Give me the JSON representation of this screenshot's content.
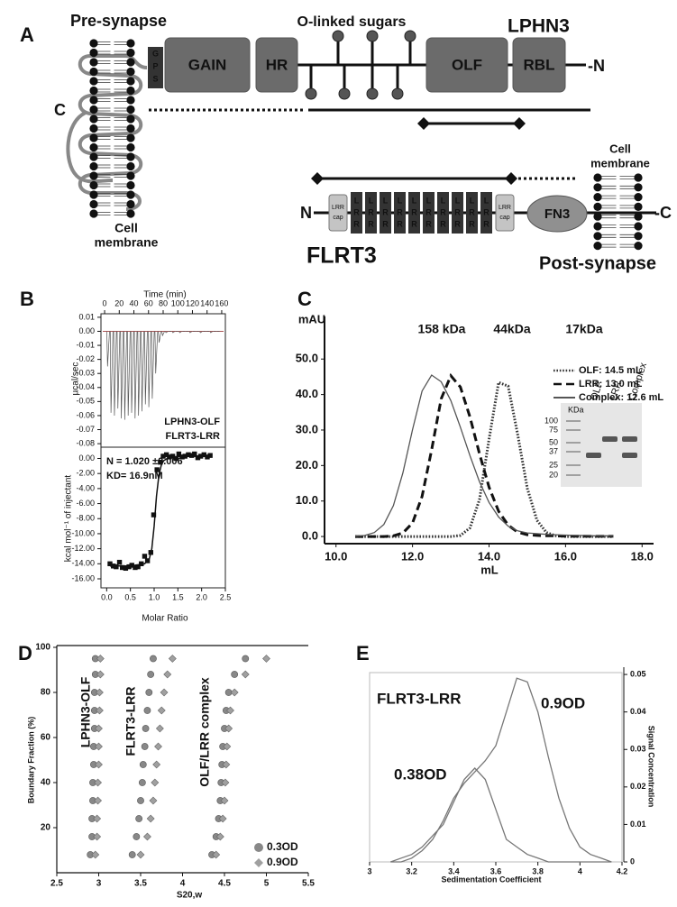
{
  "diagram": {
    "panel": "A",
    "pre_synapse": "Pre-synapse",
    "sugars": "O-linked sugars",
    "lphn3": "LPHN3",
    "gps": [
      "G",
      "P",
      "S"
    ],
    "domains_lphn3": [
      "GAIN",
      "HR",
      "OLF",
      "RBL"
    ],
    "n_term": "-N",
    "c_term": "C",
    "cell_membrane_left": [
      "Cell",
      "membrane"
    ],
    "cell_membrane_right": [
      "Cell",
      "membrane"
    ],
    "flrt3_n": "N",
    "lrr_cap": [
      "LRR",
      "cap"
    ],
    "lrr_block": [
      "L",
      "R",
      "R"
    ],
    "fn3": "FN3",
    "flrt3_c": "-C",
    "flrt3": "FLRT3",
    "post_synapse": "Post-synapse"
  },
  "panels": [
    "B",
    "C",
    "D",
    "E"
  ],
  "chart_data": [
    {
      "type": "spike",
      "xlabel": "Time (min)",
      "ylabel": "µcal/sec",
      "annotations": [
        "LPHN3-OLF",
        "FLRT3-LRR"
      ],
      "color": "#555555",
      "x": [
        3,
        7.7,
        12.4,
        17.1,
        21.8,
        26.5,
        31.2,
        35.9,
        40.6,
        45.3,
        50,
        54.7,
        59.4,
        64.1,
        68.8,
        73.5,
        78.2,
        82.9,
        87.6,
        92.3,
        97,
        101.7,
        106.4,
        111.1,
        115.8,
        120.5,
        125.2,
        129.9,
        134.6,
        139.3,
        144,
        148.7,
        153.4
      ],
      "values": [
        -0.025,
        -0.058,
        -0.06,
        -0.055,
        -0.062,
        -0.063,
        -0.06,
        -0.058,
        -0.062,
        -0.06,
        -0.057,
        -0.052,
        -0.054,
        -0.048,
        -0.03,
        -0.008,
        -0.003,
        -0.001,
        0,
        -0.001,
        0,
        -0.001,
        0,
        0,
        -0.001,
        0,
        0,
        -0.001,
        0,
        0,
        -0.001,
        0,
        0
      ],
      "xlim": [
        -5,
        165
      ],
      "ylim": [
        -0.0825,
        0.0125
      ],
      "xticks": [
        0,
        20,
        40,
        60,
        80,
        100,
        120,
        140,
        160
      ],
      "yticks": [
        0.01,
        {
          "value": 0,
          "label": "0.00"
        },
        -0.01,
        -0.02,
        -0.03,
        -0.04,
        -0.05,
        -0.06,
        -0.07,
        -0.08
      ]
    },
    {
      "type": "scatter",
      "xlabel": "Molar Ratio",
      "ylabel": "kcal mol⁻¹ of injectant",
      "annotations": [
        "N = 1.020 ±0.006",
        "KD= 16.9nM"
      ],
      "series": [
        {
          "marker": "square",
          "color": "#111111",
          "x": [
            0.07,
            0.14,
            0.2,
            0.27,
            0.33,
            0.4,
            0.47,
            0.53,
            0.6,
            0.66,
            0.73,
            0.8,
            0.86,
            0.93,
            0.99,
            1.06,
            1.13,
            1.19,
            1.26,
            1.32,
            1.39,
            1.46,
            1.52,
            1.59,
            1.65,
            1.72,
            1.79,
            1.85,
            1.92,
            1.98,
            2.05,
            2.12,
            2.18
          ],
          "values": [
            -14.0,
            -14.3,
            -14.4,
            -13.8,
            -14.5,
            -14.6,
            -14.4,
            -14.2,
            -14.5,
            -14.4,
            -14.0,
            -13.0,
            -13.6,
            -12.5,
            -7.5,
            -1.5,
            -0.5,
            0.3,
            0.5,
            0.2,
            0.3,
            0.0,
            0.6,
            0.2,
            0.3,
            0.5,
            0.4,
            0.6,
            0.1,
            0.3,
            0.5,
            0.2,
            0.4
          ]
        },
        {
          "marker": "none",
          "color": "#111111",
          "x": [
            0.07,
            0.5,
            0.8,
            0.9,
            0.95,
            1.0,
            1.05,
            1.1,
            1.15,
            1.2,
            1.3,
            1.5,
            2.2
          ],
          "values": [
            -14.3,
            -14.3,
            -14.0,
            -13.3,
            -12.0,
            -9.0,
            -5.0,
            -2.2,
            -0.9,
            -0.3,
            0.1,
            0.25,
            0.3
          ]
        }
      ],
      "xlim": [
        -0.12,
        2.5
      ],
      "ylim": [
        -17.2,
        1.5
      ],
      "xticks": [
        {
          "value": 0,
          "label": "0.0"
        },
        0.5,
        {
          "value": 1,
          "label": "1.0"
        },
        1.5,
        {
          "value": 2,
          "label": "2.0"
        },
        2.5
      ],
      "yticks": [
        {
          "value": 0,
          "label": "0.00"
        },
        {
          "value": -2,
          "label": "-2.00"
        },
        {
          "value": -4,
          "label": "-4.00"
        },
        {
          "value": -6,
          "label": "-6.00"
        },
        {
          "value": -8,
          "label": "-8.00"
        },
        {
          "value": -10,
          "label": "-10.00"
        },
        {
          "value": -12,
          "label": "-12.00"
        },
        {
          "value": -14,
          "label": "-14.00"
        },
        {
          "value": -16,
          "label": "-16.00"
        }
      ]
    },
    {
      "type": "line",
      "ylabel": "mAU",
      "xlabel": "mL",
      "markers": [
        "158 kDa",
        "44kDa",
        "17kDa"
      ],
      "legend": "upper right",
      "x": [
        10.5,
        10.75,
        11,
        11.25,
        11.5,
        11.75,
        12,
        12.25,
        12.5,
        12.75,
        13,
        13.25,
        13.5,
        13.75,
        14,
        14.25,
        14.5,
        14.75,
        15,
        15.25,
        15.5,
        15.75,
        16,
        16.25,
        16.5,
        16.75,
        17,
        17.25
      ],
      "series": [
        {
          "name": "OLF: 14.5 mL",
          "dash": "dotted",
          "color": "#333333",
          "values": [
            0,
            0,
            0,
            0,
            0,
            0,
            0,
            0,
            0,
            0,
            0,
            0.3,
            2.4,
            10.4,
            27.4,
            43.4,
            42.4,
            28.7,
            13.6,
            4.6,
            1.1,
            0.2,
            0,
            0,
            0,
            0,
            0,
            0
          ]
        },
        {
          "name": "LRR: 13.0 mL",
          "dash": "dashed",
          "color": "#111111",
          "values": [
            0,
            0,
            0,
            0,
            0.2,
            1.0,
            3.8,
            11.3,
            24.4,
            38.8,
            45.3,
            42.1,
            33.7,
            23.3,
            13.9,
            7.1,
            3.2,
            1.2,
            0.5,
            0.3,
            0.2,
            0.2,
            0.1,
            0.1,
            0.1,
            0.1,
            0.1,
            0.1
          ]
        },
        {
          "name": "Complex: 12.6 mL",
          "dash": "solid",
          "color": "#555555",
          "values": [
            0.1,
            0.3,
            1.1,
            3.4,
            8.7,
            18.0,
            30.1,
            41.0,
            45.5,
            43.6,
            38.3,
            30.8,
            22.8,
            15.4,
            9.6,
            5.5,
            2.9,
            1.6,
            1.0,
            0.8,
            0.6,
            0.5,
            0.4,
            0.3,
            0.3,
            0.2,
            0.2,
            0.2
          ]
        }
      ],
      "xlim": [
        9.7,
        18.3
      ],
      "ylim": [
        -1,
        62
      ],
      "xticks": [
        {
          "value": 10,
          "label": "10.0"
        },
        {
          "value": 12,
          "label": "12.0"
        },
        {
          "value": 14,
          "label": "14.0"
        },
        {
          "value": 16,
          "label": "16.0"
        },
        {
          "value": 18,
          "label": "18.0"
        }
      ],
      "yticks": [
        {
          "value": 0,
          "label": "0.0"
        },
        {
          "value": 10,
          "label": "10.0"
        },
        {
          "value": 20,
          "label": "20.0"
        },
        {
          "value": 30,
          "label": "30.0"
        },
        {
          "value": 40,
          "label": "40.0"
        },
        {
          "value": 50,
          "label": "50.0"
        }
      ],
      "gel": {
        "unit": "KDa",
        "ladder": [
          100,
          75,
          50,
          37,
          25,
          20
        ],
        "lanes": [
          "OLF",
          "LRR",
          "Complex"
        ]
      }
    },
    {
      "type": "scatter",
      "xlabel": "S20,w",
      "ylabel": "Boundary Fraction (%)",
      "annotations": [
        "LPHN3-OLF",
        "FLRT3-LRR",
        "OLF/LRR complex"
      ],
      "legend": "lower right",
      "series": [
        {
          "name": "0.3OD",
          "marker": "circle",
          "color": "#888888",
          "x": [
            2.9,
            2.92,
            2.92,
            2.93,
            2.93,
            2.94,
            2.94,
            2.95,
            2.95,
            2.95,
            2.96,
            2.96,
            3.4,
            3.45,
            3.48,
            3.5,
            3.52,
            3.53,
            3.55,
            3.56,
            3.58,
            3.6,
            3.62,
            3.65,
            4.35,
            4.4,
            4.43,
            4.45,
            4.46,
            4.47,
            4.48,
            4.5,
            4.52,
            4.55,
            4.62,
            4.75
          ],
          "values": [
            8,
            16,
            24,
            32,
            40,
            48,
            56,
            64,
            72,
            80,
            88,
            95,
            8,
            16,
            24,
            32,
            40,
            48,
            56,
            64,
            72,
            80,
            88,
            95,
            8,
            16,
            24,
            32,
            40,
            48,
            56,
            64,
            72,
            80,
            88,
            95
          ]
        },
        {
          "name": "0.9OD",
          "marker": "diamond",
          "color": "#a0a0a0",
          "x": [
            2.96,
            2.98,
            2.98,
            2.99,
            2.99,
            3.0,
            3.0,
            3.0,
            3.01,
            3.01,
            3.02,
            3.02,
            3.5,
            3.58,
            3.62,
            3.65,
            3.67,
            3.69,
            3.71,
            3.73,
            3.75,
            3.78,
            3.82,
            3.88,
            4.4,
            4.45,
            4.48,
            4.5,
            4.51,
            4.52,
            4.53,
            4.55,
            4.57,
            4.62,
            4.75,
            5.0
          ],
          "values": [
            8,
            16,
            24,
            32,
            40,
            48,
            56,
            64,
            72,
            80,
            88,
            95,
            8,
            16,
            24,
            32,
            40,
            48,
            56,
            64,
            72,
            80,
            88,
            95,
            8,
            16,
            24,
            32,
            40,
            48,
            56,
            64,
            72,
            80,
            88,
            95
          ]
        }
      ],
      "xlim": [
        2.5,
        5.5
      ],
      "ylim": [
        0,
        100
      ],
      "xticks": [
        2.5,
        3,
        3.5,
        4,
        4.5,
        5,
        5.5
      ],
      "yticks": [
        20,
        40,
        60,
        80,
        100
      ]
    },
    {
      "type": "line",
      "title": "FLRT3-LRR",
      "xlabel": "Sedimentation Coefficient",
      "ylabel": "Signal Concentration",
      "x": [
        3.1,
        3.15,
        3.2,
        3.25,
        3.3,
        3.35,
        3.4,
        3.45,
        3.5,
        3.55,
        3.6,
        3.65,
        3.7,
        3.75,
        3.8,
        3.85,
        3.9,
        3.95,
        4.0,
        4.05,
        4.1,
        4.15
      ],
      "series": [
        {
          "name": "0.9OD",
          "axis": "y2",
          "dash": "solid",
          "color": "#777777",
          "values": [
            0,
            0,
            0.001,
            0.003,
            0.006,
            0.011,
            0.017,
            0.021,
            0.024,
            0.027,
            0.031,
            0.04,
            0.049,
            0.048,
            0.04,
            0.028,
            0.017,
            0.009,
            0.004,
            0.002,
            0.001,
            0
          ]
        },
        {
          "name": "0.38OD",
          "axis": "y2",
          "dash": "solid",
          "color": "#777777",
          "values": [
            0,
            0.001,
            0.002,
            0.004,
            0.007,
            0.01,
            0.016,
            0.022,
            0.025,
            0.022,
            0.014,
            0.006,
            0.004,
            0.002,
            0.001,
            0,
            0,
            0,
            0,
            0,
            0,
            0
          ]
        }
      ],
      "xlim": [
        3,
        4.2
      ],
      "y2lim": [
        0,
        0.0505
      ],
      "xticks": [
        3,
        3.2,
        3.4,
        3.6,
        3.8,
        4,
        4.2
      ],
      "y2ticks": [
        0,
        0.01,
        0.02,
        0.03,
        0.04,
        0.05
      ]
    }
  ]
}
